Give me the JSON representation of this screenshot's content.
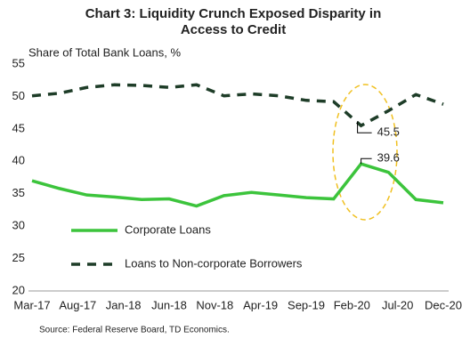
{
  "chart_data": {
    "type": "line",
    "title": [
      "Chart 3: Liquidity Crunch Exposed Disparity in",
      "Access to Credit"
    ],
    "y_label": "Share of Total Bank Loans, %",
    "source": "Source: Federal Reserve Board, TD Economics.",
    "x": [
      0,
      3,
      6,
      9,
      12,
      15,
      18,
      21,
      24,
      27,
      30,
      33,
      36,
      39,
      42,
      45
    ],
    "xlim": [
      0,
      45
    ],
    "xticks": [
      {
        "value": 0,
        "label": "Mar-17"
      },
      {
        "value": 5,
        "label": "Aug-17"
      },
      {
        "value": 10,
        "label": "Jan-18"
      },
      {
        "value": 15,
        "label": "Jun-18"
      },
      {
        "value": 20,
        "label": "Nov-18"
      },
      {
        "value": 25,
        "label": "Apr-19"
      },
      {
        "value": 30,
        "label": "Sep-19"
      },
      {
        "value": 35,
        "label": "Feb-20"
      },
      {
        "value": 40,
        "label": "Jul-20"
      },
      {
        "value": 45,
        "label": "Dec-20"
      }
    ],
    "ylim": [
      20,
      55
    ],
    "yticks": [
      20,
      25,
      30,
      35,
      40,
      45,
      50,
      55
    ],
    "series": [
      {
        "name": "Corporate Loans",
        "color": "#3cc43c",
        "dashed": false,
        "values": [
          37,
          35.8,
          34.8,
          34.5,
          34.1,
          34.2,
          33.1,
          34.7,
          35.2,
          34.8,
          34.4,
          34.2,
          39.6,
          38.3,
          34.1,
          33.6
        ]
      },
      {
        "name": "Loans to Non-corporate Borrowers",
        "color": "#1e3d28",
        "dashed": true,
        "values": [
          50.1,
          50.5,
          51.4,
          51.8,
          51.7,
          51.4,
          51.8,
          50.1,
          50.4,
          50.1,
          49.4,
          49.2,
          45.5,
          47.8,
          50.3,
          48.8
        ]
      }
    ],
    "annotations": [
      "45.5",
      "39.6"
    ]
  }
}
